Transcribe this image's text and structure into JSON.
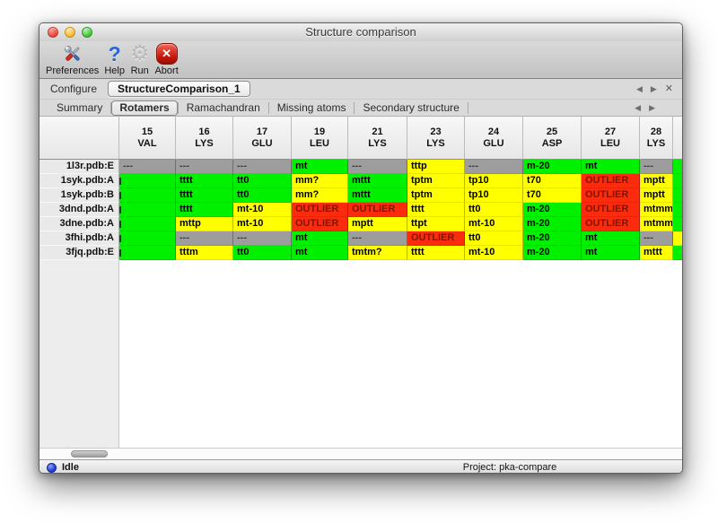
{
  "window": {
    "title": "Structure comparison"
  },
  "toolbar": {
    "items": [
      {
        "id": "preferences",
        "label": "Preferences",
        "icon": "tools-icon"
      },
      {
        "id": "help",
        "label": "Help",
        "icon": "help-question-icon"
      },
      {
        "id": "run",
        "label": "Run",
        "icon": "gear-icon"
      },
      {
        "id": "abort",
        "label": "Abort",
        "icon": "abort-cross-icon"
      }
    ]
  },
  "configure": {
    "label": "Configure",
    "value": "StructureComparison_1",
    "nav": {
      "prev": "◀",
      "next": "▶",
      "close": "✕"
    }
  },
  "tabs": {
    "items": [
      "Summary",
      "Rotamers",
      "Ramachandran",
      "Missing atoms",
      "Secondary structure"
    ],
    "active_index": 1,
    "nav": {
      "prev": "◀",
      "next": "▶"
    }
  },
  "table": {
    "columns": [
      {
        "number": "15",
        "residue": "VAL"
      },
      {
        "number": "16",
        "residue": "LYS"
      },
      {
        "number": "17",
        "residue": "GLU"
      },
      {
        "number": "19",
        "residue": "LEU"
      },
      {
        "number": "21",
        "residue": "LYS"
      },
      {
        "number": "23",
        "residue": "LYS"
      },
      {
        "number": "24",
        "residue": "GLU"
      },
      {
        "number": "25",
        "residue": "ASP"
      },
      {
        "number": "27",
        "residue": "LEU"
      },
      {
        "number": "28",
        "residue": "LYS"
      }
    ],
    "rows": [
      {
        "label": "1l3r.pdb:E",
        "edge": "ok",
        "cells": [
          {
            "t": "---",
            "s": "na"
          },
          {
            "t": "---",
            "s": "na"
          },
          {
            "t": "---",
            "s": "na"
          },
          {
            "t": "mt",
            "s": "ok"
          },
          {
            "t": "---",
            "s": "na"
          },
          {
            "t": "tttp",
            "s": "warn"
          },
          {
            "t": "---",
            "s": "na"
          },
          {
            "t": "m-20",
            "s": "ok"
          },
          {
            "t": "mt",
            "s": "ok"
          },
          {
            "t": "---",
            "s": "na"
          }
        ]
      },
      {
        "label": "1syk.pdb:A",
        "edge": "ok",
        "cells": [
          {
            "t": "",
            "s": "ok",
            "clip": true
          },
          {
            "t": "tttt",
            "s": "ok"
          },
          {
            "t": "tt0",
            "s": "ok"
          },
          {
            "t": "mm?",
            "s": "warn"
          },
          {
            "t": "mttt",
            "s": "ok"
          },
          {
            "t": "tptm",
            "s": "warn"
          },
          {
            "t": "tp10",
            "s": "warn"
          },
          {
            "t": "t70",
            "s": "warn"
          },
          {
            "t": "OUTLIER",
            "s": "out"
          },
          {
            "t": "mptt",
            "s": "warn"
          }
        ]
      },
      {
        "label": "1syk.pdb:B",
        "edge": "ok",
        "cells": [
          {
            "t": "",
            "s": "ok",
            "clip": true
          },
          {
            "t": "tttt",
            "s": "ok"
          },
          {
            "t": "tt0",
            "s": "ok"
          },
          {
            "t": "mm?",
            "s": "warn"
          },
          {
            "t": "mttt",
            "s": "ok"
          },
          {
            "t": "tptm",
            "s": "warn"
          },
          {
            "t": "tp10",
            "s": "warn"
          },
          {
            "t": "t70",
            "s": "warn"
          },
          {
            "t": "OUTLIER",
            "s": "out"
          },
          {
            "t": "mptt",
            "s": "warn"
          }
        ]
      },
      {
        "label": "3dnd.pdb:A",
        "edge": "ok",
        "cells": [
          {
            "t": "",
            "s": "ok",
            "clip": true
          },
          {
            "t": "tttt",
            "s": "ok"
          },
          {
            "t": "mt-10",
            "s": "warn"
          },
          {
            "t": "OUTLIER",
            "s": "out"
          },
          {
            "t": "OUTLIER",
            "s": "out"
          },
          {
            "t": "tttt",
            "s": "warn"
          },
          {
            "t": "tt0",
            "s": "warn"
          },
          {
            "t": "m-20",
            "s": "ok"
          },
          {
            "t": "OUTLIER",
            "s": "out"
          },
          {
            "t": "mtmm",
            "s": "warn"
          }
        ]
      },
      {
        "label": "3dne.pdb:A",
        "edge": "ok",
        "cells": [
          {
            "t": "",
            "s": "ok",
            "clip": true
          },
          {
            "t": "mttp",
            "s": "warn"
          },
          {
            "t": "mt-10",
            "s": "warn"
          },
          {
            "t": "OUTLIER",
            "s": "out"
          },
          {
            "t": "mptt",
            "s": "warn"
          },
          {
            "t": "ttpt",
            "s": "warn"
          },
          {
            "t": "mt-10",
            "s": "warn"
          },
          {
            "t": "m-20",
            "s": "ok"
          },
          {
            "t": "OUTLIER",
            "s": "out"
          },
          {
            "t": "mtmm",
            "s": "warn"
          }
        ]
      },
      {
        "label": "3fhi.pdb:A",
        "edge": "warn",
        "cells": [
          {
            "t": "",
            "s": "ok",
            "clip": true
          },
          {
            "t": "---",
            "s": "na"
          },
          {
            "t": "---",
            "s": "na"
          },
          {
            "t": "mt",
            "s": "ok"
          },
          {
            "t": "---",
            "s": "na"
          },
          {
            "t": "OUTLIER",
            "s": "out"
          },
          {
            "t": "tt0",
            "s": "warn"
          },
          {
            "t": "m-20",
            "s": "ok"
          },
          {
            "t": "mt",
            "s": "ok"
          },
          {
            "t": "---",
            "s": "na"
          }
        ]
      },
      {
        "label": "3fjq.pdb:E",
        "edge": "ok",
        "cells": [
          {
            "t": "",
            "s": "ok",
            "clip": true
          },
          {
            "t": "tttm",
            "s": "warn"
          },
          {
            "t": "tt0",
            "s": "ok"
          },
          {
            "t": "mt",
            "s": "ok"
          },
          {
            "t": "tmtm?",
            "s": "warn"
          },
          {
            "t": "tttt",
            "s": "warn"
          },
          {
            "t": "mt-10",
            "s": "warn"
          },
          {
            "t": "m-20",
            "s": "ok"
          },
          {
            "t": "mt",
            "s": "ok"
          },
          {
            "t": "mttt",
            "s": "warn"
          }
        ]
      }
    ]
  },
  "statusbar": {
    "state": "Idle",
    "project": "Project: pka-compare"
  },
  "colors": {
    "ok": "#00f000",
    "warn": "#ffff00",
    "outlier": "#fb2c0d",
    "outlier_text": "#7e1605",
    "missing": "#9d9d9d"
  }
}
